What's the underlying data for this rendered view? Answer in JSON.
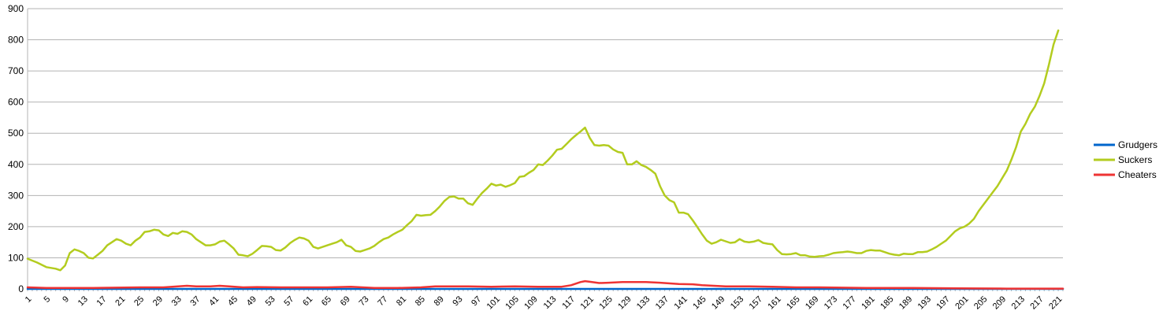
{
  "chart_data": {
    "type": "line",
    "xlim": [
      1,
      222
    ],
    "ylim": [
      0,
      900
    ],
    "y_ticks": [
      0,
      100,
      200,
      300,
      400,
      500,
      600,
      700,
      800,
      900
    ],
    "x_tick_labels": [
      "1",
      "5",
      "9",
      "13",
      "17",
      "21",
      "25",
      "29",
      "33",
      "37",
      "41",
      "45",
      "49",
      "53",
      "57",
      "61",
      "65",
      "69",
      "73",
      "77",
      "81",
      "85",
      "89",
      "93",
      "97",
      "101",
      "105",
      "109",
      "113",
      "117",
      "121",
      "125",
      "129",
      "133",
      "137",
      "141",
      "145",
      "149",
      "153",
      "157",
      "161",
      "165",
      "169",
      "173",
      "177",
      "181",
      "185",
      "189",
      "193",
      "197",
      "201",
      "205",
      "209",
      "213",
      "217",
      "221"
    ],
    "grid": "horizontal",
    "legend_position": "right",
    "series": [
      {
        "name": "Grudgers",
        "color": "#0066cc",
        "points": [
          [
            1,
            0
          ],
          [
            222,
            0
          ]
        ]
      },
      {
        "name": "Suckers",
        "color": "#b3cc1f",
        "points": [
          [
            1,
            97
          ],
          [
            3,
            85
          ],
          [
            5,
            70
          ],
          [
            7,
            65
          ],
          [
            8,
            60
          ],
          [
            9,
            75
          ],
          [
            10,
            115
          ],
          [
            11,
            127
          ],
          [
            12,
            122
          ],
          [
            13,
            115
          ],
          [
            14,
            100
          ],
          [
            15,
            98
          ],
          [
            16,
            110
          ],
          [
            17,
            122
          ],
          [
            18,
            140
          ],
          [
            19,
            150
          ],
          [
            20,
            160
          ],
          [
            21,
            155
          ],
          [
            22,
            145
          ],
          [
            23,
            140
          ],
          [
            24,
            155
          ],
          [
            25,
            165
          ],
          [
            26,
            183
          ],
          [
            27,
            185
          ],
          [
            28,
            190
          ],
          [
            29,
            188
          ],
          [
            30,
            175
          ],
          [
            31,
            170
          ],
          [
            32,
            180
          ],
          [
            33,
            177
          ],
          [
            34,
            185
          ],
          [
            35,
            183
          ],
          [
            36,
            175
          ],
          [
            37,
            160
          ],
          [
            38,
            150
          ],
          [
            39,
            140
          ],
          [
            40,
            140
          ],
          [
            41,
            143
          ],
          [
            42,
            152
          ],
          [
            43,
            155
          ],
          [
            44,
            143
          ],
          [
            45,
            130
          ],
          [
            46,
            110
          ],
          [
            47,
            108
          ],
          [
            48,
            105
          ],
          [
            49,
            113
          ],
          [
            50,
            125
          ],
          [
            51,
            138
          ],
          [
            52,
            137
          ],
          [
            53,
            135
          ],
          [
            54,
            125
          ],
          [
            55,
            123
          ],
          [
            56,
            133
          ],
          [
            57,
            147
          ],
          [
            58,
            157
          ],
          [
            59,
            165
          ],
          [
            60,
            162
          ],
          [
            61,
            155
          ],
          [
            62,
            135
          ],
          [
            63,
            130
          ],
          [
            64,
            135
          ],
          [
            65,
            140
          ],
          [
            66,
            145
          ],
          [
            67,
            150
          ],
          [
            68,
            158
          ],
          [
            69,
            140
          ],
          [
            70,
            135
          ],
          [
            71,
            122
          ],
          [
            72,
            120
          ],
          [
            73,
            125
          ],
          [
            74,
            130
          ],
          [
            75,
            138
          ],
          [
            76,
            150
          ],
          [
            77,
            160
          ],
          [
            78,
            165
          ],
          [
            79,
            175
          ],
          [
            80,
            183
          ],
          [
            81,
            190
          ],
          [
            82,
            205
          ],
          [
            83,
            218
          ],
          [
            84,
            238
          ],
          [
            85,
            235
          ],
          [
            86,
            237
          ],
          [
            87,
            238
          ],
          [
            88,
            250
          ],
          [
            89,
            265
          ],
          [
            90,
            283
          ],
          [
            91,
            295
          ],
          [
            92,
            297
          ],
          [
            93,
            290
          ],
          [
            94,
            290
          ],
          [
            95,
            275
          ],
          [
            96,
            270
          ],
          [
            97,
            290
          ],
          [
            98,
            308
          ],
          [
            99,
            322
          ],
          [
            100,
            338
          ],
          [
            101,
            332
          ],
          [
            102,
            335
          ],
          [
            103,
            328
          ],
          [
            104,
            333
          ],
          [
            105,
            340
          ],
          [
            106,
            360
          ],
          [
            107,
            362
          ],
          [
            108,
            373
          ],
          [
            109,
            382
          ],
          [
            110,
            400
          ],
          [
            111,
            398
          ],
          [
            112,
            412
          ],
          [
            113,
            428
          ],
          [
            114,
            447
          ],
          [
            115,
            450
          ],
          [
            116,
            465
          ],
          [
            117,
            480
          ],
          [
            118,
            493
          ],
          [
            119,
            505
          ],
          [
            120,
            518
          ],
          [
            121,
            485
          ],
          [
            122,
            462
          ],
          [
            123,
            460
          ],
          [
            124,
            462
          ],
          [
            125,
            460
          ],
          [
            126,
            448
          ],
          [
            127,
            440
          ],
          [
            128,
            437
          ],
          [
            129,
            400
          ],
          [
            130,
            400
          ],
          [
            131,
            410
          ],
          [
            132,
            398
          ],
          [
            133,
            392
          ],
          [
            134,
            382
          ],
          [
            135,
            370
          ],
          [
            136,
            330
          ],
          [
            137,
            300
          ],
          [
            138,
            285
          ],
          [
            139,
            278
          ],
          [
            140,
            245
          ],
          [
            141,
            245
          ],
          [
            142,
            240
          ],
          [
            143,
            220
          ],
          [
            144,
            198
          ],
          [
            145,
            175
          ],
          [
            146,
            155
          ],
          [
            147,
            145
          ],
          [
            148,
            150
          ],
          [
            149,
            158
          ],
          [
            150,
            153
          ],
          [
            151,
            148
          ],
          [
            152,
            150
          ],
          [
            153,
            160
          ],
          [
            154,
            152
          ],
          [
            155,
            150
          ],
          [
            156,
            152
          ],
          [
            157,
            157
          ],
          [
            158,
            148
          ],
          [
            159,
            145
          ],
          [
            160,
            143
          ],
          [
            161,
            125
          ],
          [
            162,
            112
          ],
          [
            163,
            111
          ],
          [
            164,
            112
          ],
          [
            165,
            115
          ],
          [
            166,
            108
          ],
          [
            167,
            108
          ],
          [
            168,
            104
          ],
          [
            169,
            103
          ],
          [
            170,
            105
          ],
          [
            171,
            106
          ],
          [
            172,
            110
          ],
          [
            173,
            115
          ],
          [
            174,
            117
          ],
          [
            175,
            118
          ],
          [
            176,
            120
          ],
          [
            177,
            118
          ],
          [
            178,
            115
          ],
          [
            179,
            115
          ],
          [
            180,
            122
          ],
          [
            181,
            125
          ],
          [
            182,
            123
          ],
          [
            183,
            123
          ],
          [
            184,
            118
          ],
          [
            185,
            113
          ],
          [
            186,
            110
          ],
          [
            187,
            108
          ],
          [
            188,
            113
          ],
          [
            189,
            112
          ],
          [
            190,
            112
          ],
          [
            191,
            118
          ],
          [
            192,
            118
          ],
          [
            193,
            120
          ],
          [
            194,
            127
          ],
          [
            195,
            135
          ],
          [
            196,
            145
          ],
          [
            197,
            155
          ],
          [
            198,
            170
          ],
          [
            199,
            185
          ],
          [
            200,
            195
          ],
          [
            201,
            200
          ],
          [
            202,
            210
          ],
          [
            203,
            225
          ],
          [
            204,
            250
          ],
          [
            205,
            270
          ],
          [
            206,
            290
          ],
          [
            207,
            310
          ],
          [
            208,
            330
          ],
          [
            209,
            355
          ],
          [
            210,
            380
          ],
          [
            211,
            415
          ],
          [
            212,
            455
          ],
          [
            213,
            505
          ],
          [
            214,
            530
          ],
          [
            215,
            562
          ],
          [
            216,
            585
          ],
          [
            217,
            620
          ],
          [
            218,
            660
          ],
          [
            219,
            720
          ],
          [
            220,
            785
          ],
          [
            221,
            830
          ]
        ]
      },
      {
        "name": "Cheaters",
        "color": "#ee3333",
        "points": [
          [
            1,
            5
          ],
          [
            5,
            3
          ],
          [
            15,
            3
          ],
          [
            25,
            5
          ],
          [
            30,
            5
          ],
          [
            35,
            10
          ],
          [
            37,
            8
          ],
          [
            40,
            8
          ],
          [
            42,
            10
          ],
          [
            44,
            8
          ],
          [
            47,
            5
          ],
          [
            50,
            6
          ],
          [
            55,
            5
          ],
          [
            60,
            5
          ],
          [
            65,
            5
          ],
          [
            70,
            7
          ],
          [
            75,
            3
          ],
          [
            80,
            3
          ],
          [
            85,
            5
          ],
          [
            88,
            8
          ],
          [
            95,
            8
          ],
          [
            100,
            7
          ],
          [
            105,
            8
          ],
          [
            110,
            7
          ],
          [
            115,
            7
          ],
          [
            117,
            12
          ],
          [
            119,
            22
          ],
          [
            120,
            25
          ],
          [
            121,
            23
          ],
          [
            123,
            19
          ],
          [
            125,
            20
          ],
          [
            128,
            22
          ],
          [
            133,
            22
          ],
          [
            136,
            20
          ],
          [
            140,
            16
          ],
          [
            143,
            15
          ],
          [
            145,
            12
          ],
          [
            150,
            8
          ],
          [
            155,
            8
          ],
          [
            160,
            7
          ],
          [
            165,
            5
          ],
          [
            170,
            5
          ],
          [
            180,
            3
          ],
          [
            190,
            3
          ],
          [
            200,
            2
          ],
          [
            210,
            1
          ],
          [
            222,
            1
          ]
        ]
      }
    ]
  }
}
